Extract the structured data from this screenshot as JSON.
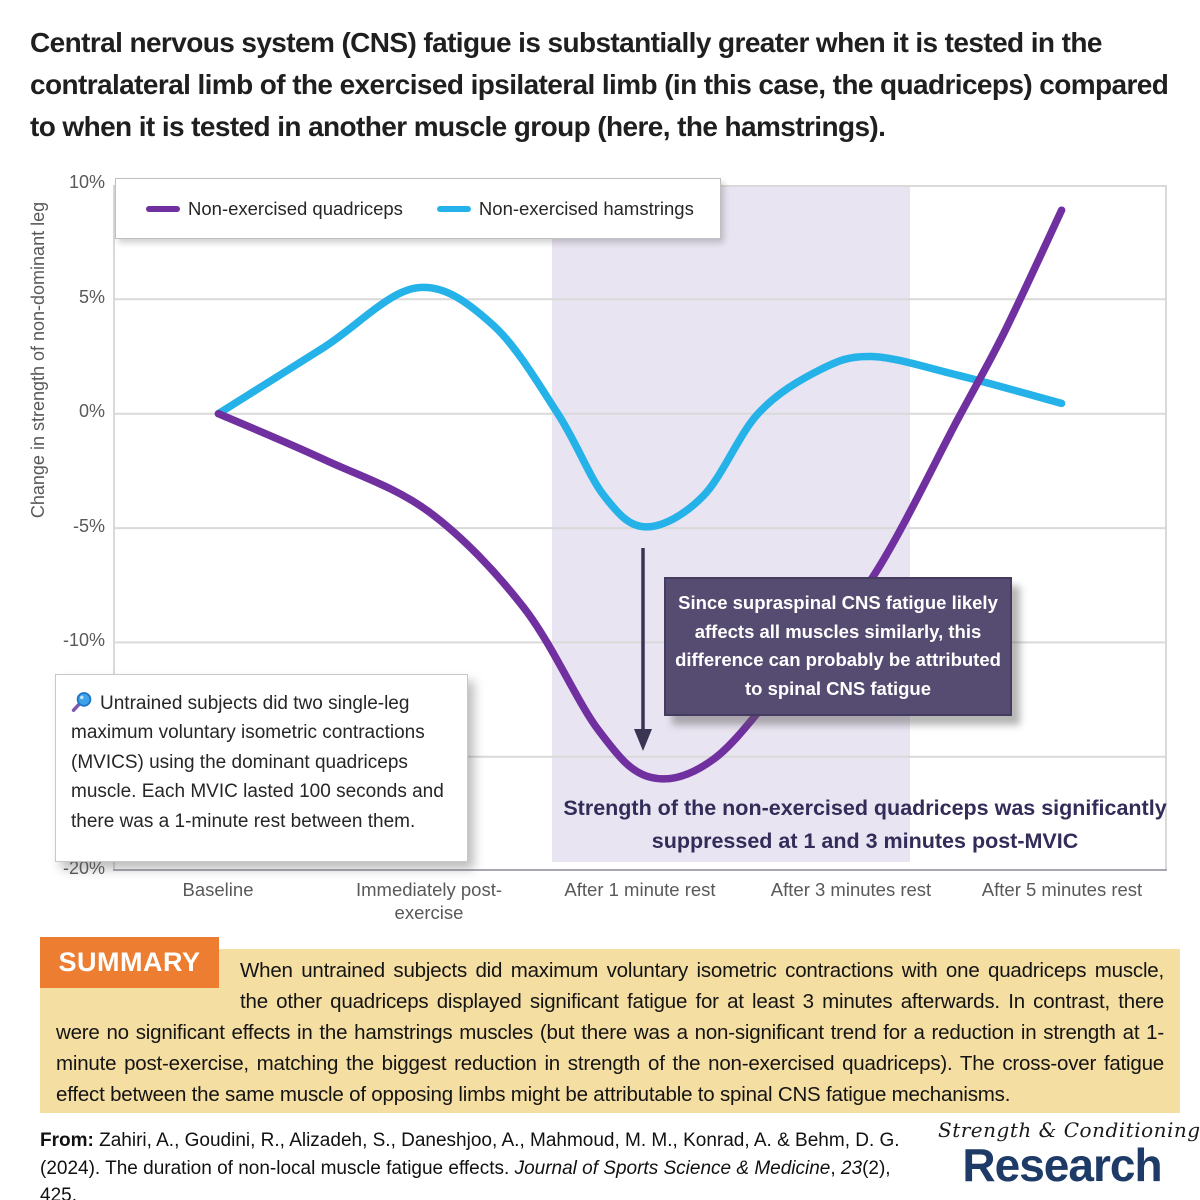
{
  "title": "Central nervous system (CNS) fatigue is substantially greater when it is tested in the contralateral limb of the exercised ipsilateral limb (in this case, the quadriceps) compared to when it is tested in another muscle group (here, the hamstrings).",
  "chart_data": {
    "type": "line",
    "categories": [
      "Baseline",
      "Immediately post-exercise",
      "After 1 minute rest",
      "After 3 minutes rest",
      "After 5 minutes rest"
    ],
    "ylabel": "Change in strength of non-dominant leg",
    "ytick_labels": [
      "10%",
      "5%",
      "0%",
      "-5%",
      "-10%",
      "-20%"
    ],
    "ylim": [
      -20,
      10
    ],
    "grid": true,
    "legend_position": "top-left",
    "series": [
      {
        "name": "Non-exercised quadriceps",
        "color": "#7030a0",
        "values": [
          0,
          -4.3,
          -15.8,
          -8.5,
          9
        ],
        "curve_points": [
          [
            0,
            0
          ],
          [
            0.5,
            -2.0
          ],
          [
            1.0,
            -4.3
          ],
          [
            1.45,
            -8.5
          ],
          [
            1.8,
            -13.8
          ],
          [
            2.05,
            -15.9
          ],
          [
            2.35,
            -15.1
          ],
          [
            2.7,
            -11.5
          ],
          [
            3.1,
            -7.2
          ],
          [
            3.51,
            -0.2
          ],
          [
            3.73,
            3.6
          ],
          [
            4.0,
            8.9
          ]
        ]
      },
      {
        "name": "Non-exercised hamstrings",
        "color": "#25b2e8",
        "values": [
          0,
          5.5,
          -4.9,
          2.5,
          0.5
        ],
        "curve_points": [
          [
            0,
            0
          ],
          [
            0.5,
            2.9
          ],
          [
            0.94,
            5.5
          ],
          [
            1.3,
            3.9
          ],
          [
            1.61,
            0
          ],
          [
            1.83,
            -3.6
          ],
          [
            2.03,
            -4.95
          ],
          [
            2.3,
            -3.6
          ],
          [
            2.56,
            0
          ],
          [
            2.85,
            1.9
          ],
          [
            3.1,
            2.5
          ],
          [
            3.5,
            1.7
          ],
          [
            4.0,
            0.45
          ]
        ]
      }
    ],
    "shaded_region": {
      "from_category": "After 1 minute rest",
      "to_category": "After 3 minutes rest",
      "color": "#e9e4f1"
    },
    "arrow_color": "#3b3554",
    "gridline_color": "#d9d9d9"
  },
  "annotation_box": {
    "text": "Since supraspinal CNS fatigue likely affects all muscles similarly, this difference can probably be attributed to spinal CNS fatigue",
    "bg": "#564b70"
  },
  "info_box": {
    "icon": "magnifier-icon",
    "text": "Untrained subjects did two single-leg maximum voluntary isometric contractions (MVICS) using the dominant quadriceps muscle. Each MVIC lasted 100 seconds and there was a 1-minute rest between them."
  },
  "suppression_note": "Strength of the non-exercised quadriceps was significantly suppressed at 1 and 3 minutes post-MVIC",
  "summary": {
    "label": "SUMMARY",
    "text": "When untrained subjects did maximum voluntary isometric contractions with one quadriceps muscle, the other quadriceps displayed significant fatigue for at least 3 minutes afterwards. In contrast, there were no significant effects in the hamstrings muscles (but there was a non-significant trend for a reduction in strength at 1-minute post-exercise, matching the biggest reduction in strength of the non-exercised quadriceps). The cross-over fatigue effect between the same muscle of opposing limbs might be attributable to spinal CNS fatigue mechanisms.",
    "label_bg": "#ed7d31",
    "bg": "#f4dea1"
  },
  "citation": {
    "prefix": "From:",
    "authors": " Zahiri, A., Goudini, R., Alizadeh, S., Daneshjoo, A., Mahmoud, M. M., Konrad, A. & Behm, D. G. (2024). The duration of non-local muscle fatigue effects. ",
    "journal": "Journal of Sports Science & Medicine",
    "sep": ", ",
    "volume": "23",
    "issue_pages": "(2), 425."
  },
  "logo": {
    "line1": "Strength & Conditioning",
    "line2": "Research",
    "color": "#1e3a66"
  }
}
